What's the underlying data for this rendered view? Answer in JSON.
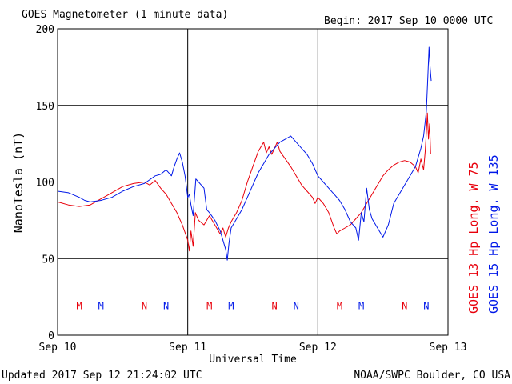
{
  "header": {
    "title": "GOES Magnetometer (1 minute data)",
    "begin": "Begin:  2017 Sep 10 0000 UTC"
  },
  "footer": {
    "updated": "Updated 2017 Sep 12 21:24:02 UTC",
    "credit": "NOAA/SWPC Boulder, CO USA"
  },
  "colors": {
    "goes13": "#e8000b",
    "goes15": "#0018e8",
    "axis": "#000000"
  },
  "chart_data": {
    "type": "line",
    "title": "GOES Magnetometer (1 minute data)",
    "xlabel": "Universal Time",
    "ylabel": "NanoTesla (nT)",
    "xlim": [
      0,
      72
    ],
    "x_unit": "hours after 2017 Sep 10 0000 UTC",
    "ylim": [
      0,
      200
    ],
    "yticks": [
      0,
      50,
      100,
      150,
      200
    ],
    "xticks": [
      {
        "x": 0,
        "label": "Sep 10"
      },
      {
        "x": 24,
        "label": "Sep 11"
      },
      {
        "x": 48,
        "label": "Sep 12"
      },
      {
        "x": 72,
        "label": "Sep 13"
      }
    ],
    "grid": true,
    "series": [
      {
        "name": "GOES 13 Hp  Long. W 75",
        "color": "#e8000b",
        "points": [
          [
            0,
            87
          ],
          [
            2,
            85
          ],
          [
            4,
            84
          ],
          [
            6,
            85
          ],
          [
            8,
            89
          ],
          [
            10,
            93
          ],
          [
            12,
            97
          ],
          [
            14,
            99
          ],
          [
            16,
            100
          ],
          [
            17,
            98
          ],
          [
            18,
            101
          ],
          [
            19,
            96
          ],
          [
            20,
            92
          ],
          [
            21,
            86
          ],
          [
            22,
            80
          ],
          [
            22.5,
            76
          ],
          [
            23,
            72
          ],
          [
            23.5,
            67
          ],
          [
            24,
            62
          ],
          [
            24.3,
            55
          ],
          [
            24.6,
            68
          ],
          [
            25,
            58
          ],
          [
            25.4,
            80
          ],
          [
            26,
            75
          ],
          [
            27,
            72
          ],
          [
            28,
            78
          ],
          [
            29,
            72
          ],
          [
            30,
            66
          ],
          [
            30.5,
            70
          ],
          [
            31,
            64
          ],
          [
            31.5,
            70
          ],
          [
            32,
            74
          ],
          [
            33,
            80
          ],
          [
            34,
            88
          ],
          [
            35,
            100
          ],
          [
            36,
            110
          ],
          [
            37,
            120
          ],
          [
            38,
            126
          ],
          [
            38.5,
            119
          ],
          [
            39,
            123
          ],
          [
            39.5,
            118
          ],
          [
            40,
            122
          ],
          [
            40.5,
            126
          ],
          [
            41,
            120
          ],
          [
            42,
            115
          ],
          [
            43,
            110
          ],
          [
            44,
            104
          ],
          [
            45,
            98
          ],
          [
            46,
            94
          ],
          [
            47,
            90
          ],
          [
            47.5,
            86
          ],
          [
            48,
            90
          ],
          [
            48.5,
            88
          ],
          [
            49,
            86
          ],
          [
            50,
            80
          ],
          [
            51,
            70
          ],
          [
            51.5,
            66
          ],
          [
            52,
            68
          ],
          [
            53,
            70
          ],
          [
            54,
            72
          ],
          [
            55,
            76
          ],
          [
            56,
            80
          ],
          [
            57,
            86
          ],
          [
            58,
            92
          ],
          [
            59,
            98
          ],
          [
            60,
            104
          ],
          [
            61,
            108
          ],
          [
            62,
            111
          ],
          [
            63,
            113
          ],
          [
            64,
            114
          ],
          [
            65,
            113
          ],
          [
            66,
            110
          ],
          [
            66.5,
            106
          ],
          [
            67,
            115
          ],
          [
            67.5,
            108
          ],
          [
            67.8,
            120
          ],
          [
            68,
            132
          ],
          [
            68.2,
            145
          ],
          [
            68.4,
            128
          ],
          [
            68.6,
            138
          ],
          [
            68.8,
            118
          ]
        ]
      },
      {
        "name": "GOES 15 Hp  Long. W 135",
        "color": "#0018e8",
        "points": [
          [
            0,
            94
          ],
          [
            2,
            93
          ],
          [
            4,
            90
          ],
          [
            5,
            88
          ],
          [
            6,
            87
          ],
          [
            8,
            88
          ],
          [
            10,
            90
          ],
          [
            12,
            94
          ],
          [
            14,
            97
          ],
          [
            16,
            99
          ],
          [
            18,
            104
          ],
          [
            19,
            105
          ],
          [
            20,
            108
          ],
          [
            21,
            104
          ],
          [
            21.5,
            110
          ],
          [
            22,
            115
          ],
          [
            22.5,
            119
          ],
          [
            23,
            113
          ],
          [
            23.5,
            104
          ],
          [
            24,
            90
          ],
          [
            24.3,
            92
          ],
          [
            24.6,
            85
          ],
          [
            25,
            78
          ],
          [
            25.5,
            102
          ],
          [
            26,
            100
          ],
          [
            27,
            96
          ],
          [
            27.5,
            82
          ],
          [
            28,
            80
          ],
          [
            29,
            75
          ],
          [
            30,
            68
          ],
          [
            30.5,
            62
          ],
          [
            31,
            56
          ],
          [
            31.3,
            49
          ],
          [
            31.6,
            60
          ],
          [
            32,
            70
          ],
          [
            33,
            76
          ],
          [
            34,
            82
          ],
          [
            35,
            90
          ],
          [
            36,
            98
          ],
          [
            37,
            106
          ],
          [
            38,
            112
          ],
          [
            39,
            118
          ],
          [
            40,
            122
          ],
          [
            41,
            126
          ],
          [
            42,
            128
          ],
          [
            43,
            130
          ],
          [
            44,
            126
          ],
          [
            45,
            122
          ],
          [
            46,
            118
          ],
          [
            47,
            112
          ],
          [
            48,
            104
          ],
          [
            49,
            100
          ],
          [
            50,
            96
          ],
          [
            51,
            92
          ],
          [
            52,
            88
          ],
          [
            53,
            82
          ],
          [
            54,
            74
          ],
          [
            55,
            70
          ],
          [
            55.5,
            62
          ],
          [
            56,
            80
          ],
          [
            56.5,
            74
          ],
          [
            57,
            96
          ],
          [
            57.5,
            82
          ],
          [
            58,
            76
          ],
          [
            59,
            70
          ],
          [
            60,
            64
          ],
          [
            61,
            72
          ],
          [
            62,
            86
          ],
          [
            63,
            92
          ],
          [
            64,
            98
          ],
          [
            65,
            104
          ],
          [
            66,
            110
          ],
          [
            66.5,
            116
          ],
          [
            67,
            122
          ],
          [
            67.5,
            130
          ],
          [
            68,
            146
          ],
          [
            68.3,
            170
          ],
          [
            68.5,
            188
          ],
          [
            68.7,
            175
          ],
          [
            68.9,
            166
          ]
        ]
      }
    ],
    "annotations": [
      {
        "text": "M",
        "x": 4,
        "y": 17,
        "series": 0
      },
      {
        "text": "M",
        "x": 8,
        "y": 17,
        "series": 1
      },
      {
        "text": "N",
        "x": 16,
        "y": 17,
        "series": 0
      },
      {
        "text": "N",
        "x": 20,
        "y": 17,
        "series": 1
      },
      {
        "text": "M",
        "x": 28,
        "y": 17,
        "series": 0
      },
      {
        "text": "M",
        "x": 32,
        "y": 17,
        "series": 1
      },
      {
        "text": "N",
        "x": 40,
        "y": 17,
        "series": 0
      },
      {
        "text": "N",
        "x": 44,
        "y": 17,
        "series": 1
      },
      {
        "text": "M",
        "x": 52,
        "y": 17,
        "series": 0
      },
      {
        "text": "M",
        "x": 56,
        "y": 17,
        "series": 1
      },
      {
        "text": "N",
        "x": 64,
        "y": 17,
        "series": 0
      },
      {
        "text": "N",
        "x": 68,
        "y": 17,
        "series": 1
      }
    ]
  }
}
